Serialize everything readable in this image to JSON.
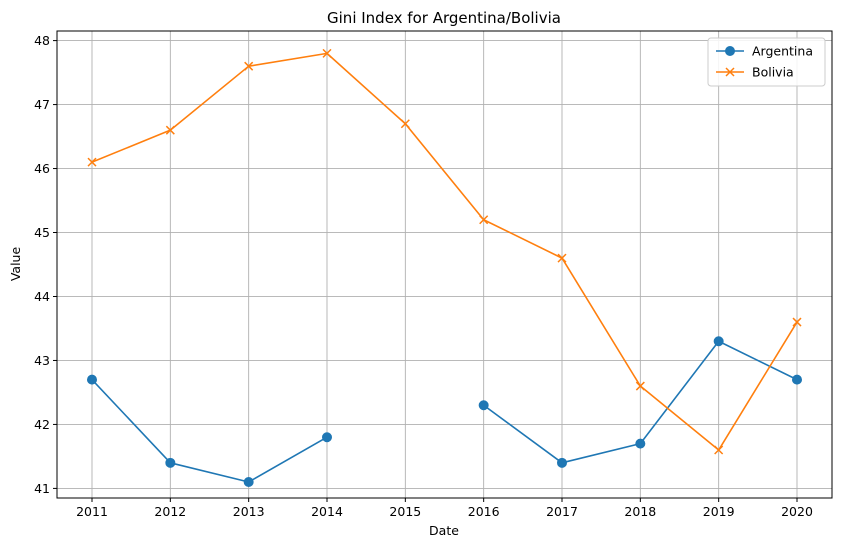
{
  "chart_data": {
    "type": "line",
    "title": "Gini Index for Argentina/Bolivia",
    "xlabel": "Date",
    "ylabel": "Value",
    "x": [
      "2011",
      "2012",
      "2013",
      "2014",
      "2015",
      "2016",
      "2017",
      "2018",
      "2019",
      "2020"
    ],
    "ylim": [
      40.85,
      48.15
    ],
    "yticks": [
      41,
      42,
      43,
      44,
      45,
      46,
      47,
      48
    ],
    "grid": true,
    "legend_position": "top-right",
    "series": [
      {
        "name": "Argentina",
        "color": "#1f77b4",
        "marker": "circle",
        "values": [
          42.7,
          41.4,
          41.1,
          41.8,
          null,
          42.3,
          41.4,
          41.7,
          43.3,
          42.7
        ]
      },
      {
        "name": "Bolivia",
        "color": "#ff7f0e",
        "marker": "x",
        "values": [
          46.1,
          46.6,
          47.6,
          47.8,
          46.7,
          45.2,
          44.6,
          42.6,
          41.6,
          43.6
        ]
      }
    ]
  }
}
